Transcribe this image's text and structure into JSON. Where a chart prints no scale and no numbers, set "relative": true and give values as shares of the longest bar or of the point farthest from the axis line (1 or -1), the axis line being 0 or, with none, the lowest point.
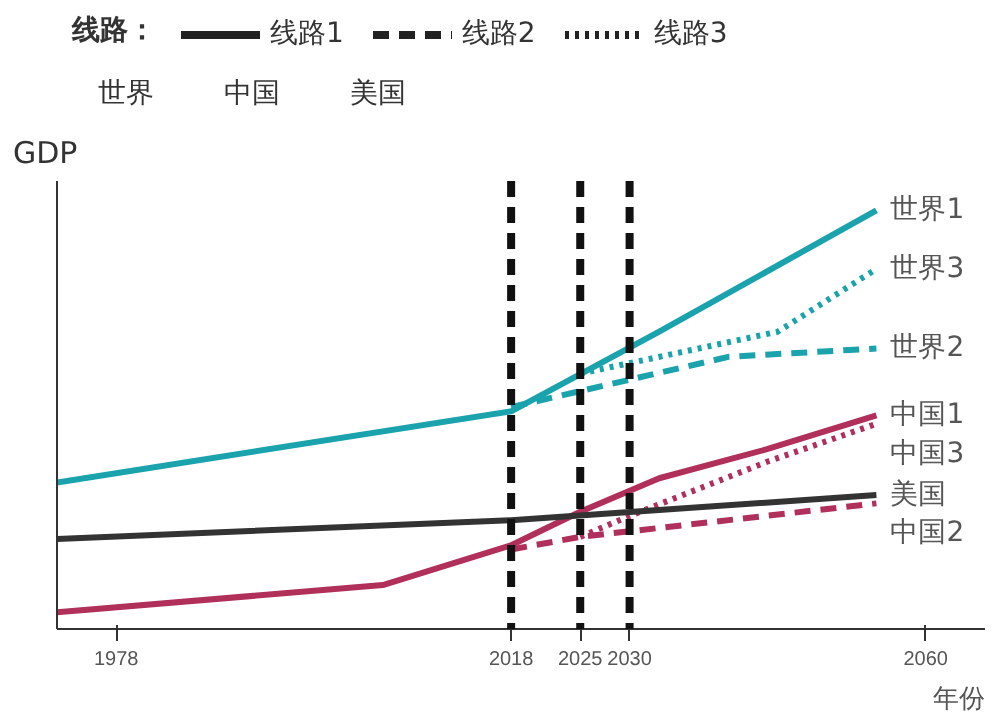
{
  "chart_data": {
    "type": "line",
    "relative": true,
    "ylabel": "GDP",
    "xlabel": "年份",
    "legend_title": "线路：",
    "legend": "top",
    "grid": false,
    "xlim": [
      1972,
      2066
    ],
    "xticks": [
      1978,
      2018,
      2025,
      2030,
      2060
    ],
    "annotations": [
      "线路1",
      "线路2",
      "线路3",
      "世界",
      "中国",
      "美国"
    ],
    "ref_lines": [
      {
        "axis": "x",
        "value": 2018,
        "color": "#111111",
        "line_style": "dashed"
      },
      {
        "axis": "x",
        "value": 2025,
        "color": "#111111",
        "line_style": "dashed"
      },
      {
        "axis": "x",
        "value": 2030,
        "color": "#111111",
        "line_style": "dashed"
      }
    ],
    "series": [
      {
        "name": "世界1",
        "color": "#1aa3ad",
        "line_style": "solid",
        "x": [
          1972,
          2018,
          2033,
          2055
        ],
        "values": [
          0.35,
          0.52,
          0.71,
          1.0
        ]
      },
      {
        "name": "世界2",
        "color": "#1aa3ad",
        "line_style": "dashed",
        "x": [
          2018,
          2040,
          2055
        ],
        "values": [
          0.53,
          0.65,
          0.67
        ]
      },
      {
        "name": "世界3",
        "color": "#1aa3ad",
        "line_style": "dotted",
        "x": [
          2025,
          2045,
          2055
        ],
        "values": [
          0.61,
          0.71,
          0.86
        ]
      },
      {
        "name": "中国1",
        "color": "#b0305a",
        "line_style": "solid",
        "x": [
          1972,
          2005,
          2018,
          2025,
          2033,
          2044,
          2055
        ],
        "values": [
          0.04,
          0.105,
          0.2,
          0.28,
          0.36,
          0.43,
          0.51
        ]
      },
      {
        "name": "中国3",
        "color": "#b0305a",
        "line_style": "dotted",
        "x": [
          2025,
          2030,
          2044,
          2055
        ],
        "values": [
          0.22,
          0.27,
          0.4,
          0.49
        ]
      },
      {
        "name": "美国",
        "color": "#333333",
        "line_style": "solid",
        "x": [
          1972,
          2018,
          2055
        ],
        "values": [
          0.215,
          0.26,
          0.32
        ]
      },
      {
        "name": "中国2",
        "color": "#b0305a",
        "line_style": "dashed",
        "x": [
          2018,
          2025,
          2055
        ],
        "values": [
          0.19,
          0.22,
          0.3
        ]
      }
    ]
  }
}
